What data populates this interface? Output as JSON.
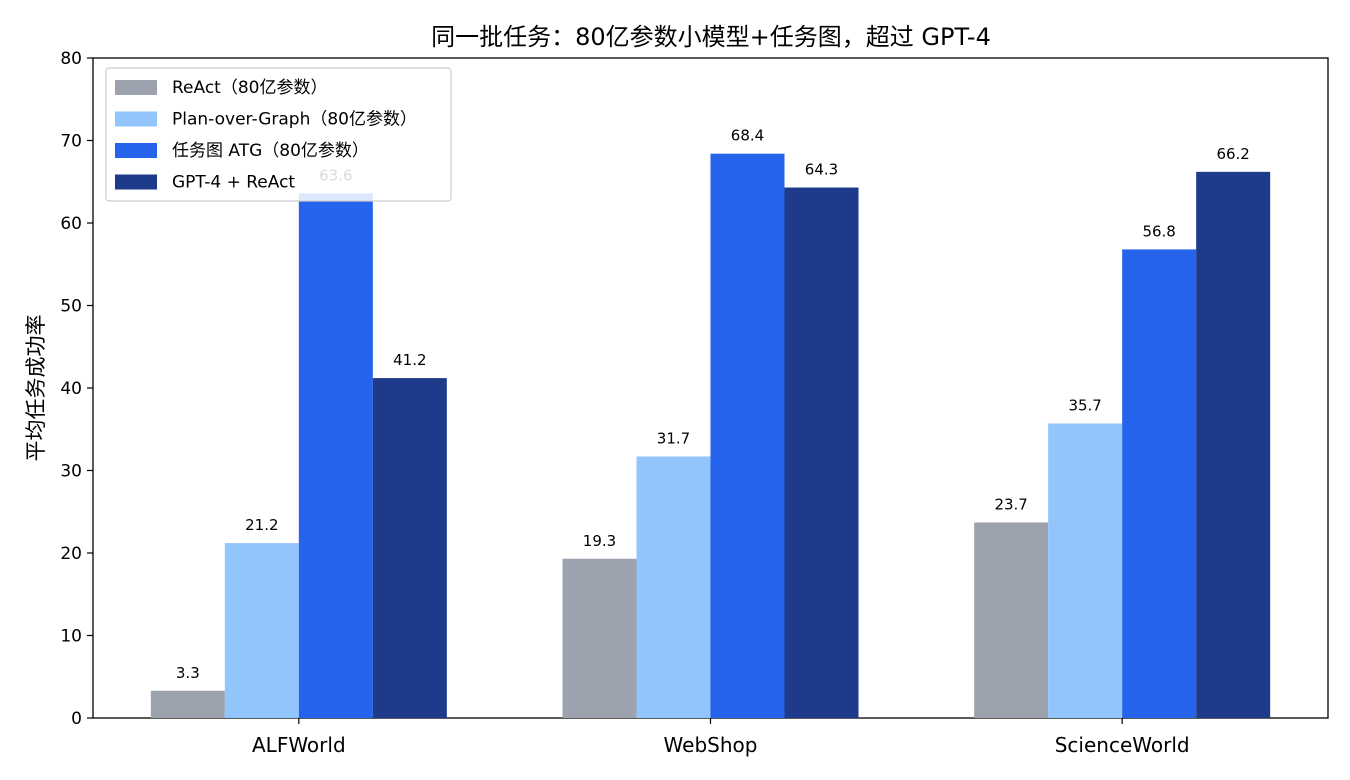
{
  "chart_data": {
    "type": "bar",
    "title": "同一批任务：80亿参数小模型+任务图，超过 GPT-4",
    "xlabel": "",
    "ylabel": "平均任务成功率",
    "ylim": [
      0,
      80
    ],
    "yticks": [
      0,
      10,
      20,
      30,
      40,
      50,
      60,
      70,
      80
    ],
    "categories": [
      "ALFWorld",
      "WebShop",
      "ScienceWorld"
    ],
    "series": [
      {
        "name": "ReAct（80亿参数）",
        "color": "#9ca3af",
        "values": [
          3.3,
          19.3,
          23.7
        ],
        "labels": [
          "3.3",
          "19.3",
          "23.7"
        ]
      },
      {
        "name": "Plan-over-Graph（80亿参数）",
        "color": "#93c5fd",
        "values": [
          21.2,
          31.7,
          35.7
        ],
        "labels": [
          "21.2",
          "31.7",
          "35.7"
        ]
      },
      {
        "name": "任务图 ATG（80亿参数）",
        "color": "#2563eb",
        "values": [
          63.6,
          68.4,
          56.8
        ],
        "labels": [
          "63.6",
          "68.4",
          "56.8"
        ]
      },
      {
        "name": "GPT-4 + ReAct",
        "color": "#1e3a8a",
        "values": [
          41.2,
          64.3,
          66.2
        ],
        "labels": [
          "41.2",
          "64.3",
          "66.2"
        ]
      }
    ],
    "legend_position": "top-left",
    "grid": false
  }
}
